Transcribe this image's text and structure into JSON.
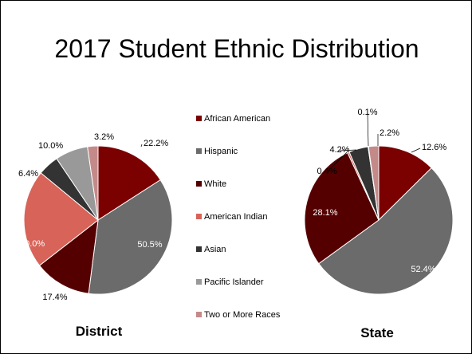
{
  "slide": {
    "title": "2017 Student Ethnic Distribution"
  },
  "legend": [
    {
      "label": "African American",
      "color": "#7b0000"
    },
    {
      "label": "Hispanic",
      "color": "#6b6b6b"
    },
    {
      "label": "White",
      "color": "#550000"
    },
    {
      "label": "American Indian",
      "color": "#d86359"
    },
    {
      "label": "Asian",
      "color": "#333333"
    },
    {
      "label": "Pacific Islander",
      "color": "#999999"
    },
    {
      "label": "Two or More Races",
      "color": "#c48a8a"
    }
  ],
  "chart_data": [
    {
      "type": "pie",
      "title": "District",
      "categories": [
        "African American",
        "Hispanic",
        "White",
        "American Indian",
        "Asian",
        "Pacific Islander",
        "Two or More Races"
      ],
      "values": [
        22.2,
        50.5,
        17.4,
        30.0,
        6.4,
        10.0,
        3.2
      ],
      "labels": [
        "22.2%",
        "50.5%",
        "17.4%",
        "30.0%",
        "6.4%",
        "10.0%",
        "3.2%"
      ],
      "legend": "center"
    },
    {
      "type": "pie",
      "title": "State",
      "categories": [
        "African American",
        "Hispanic",
        "White",
        "American Indian",
        "Asian",
        "Pacific Islander",
        "Two or More Races"
      ],
      "values": [
        12.6,
        52.4,
        28.1,
        0.4,
        4.2,
        0.1,
        2.2
      ],
      "labels": [
        "12.6%",
        "52.4%",
        "28.1%",
        "0.4%",
        "4.2%",
        "0.1%",
        "2.2%"
      ],
      "legend": "center"
    }
  ]
}
